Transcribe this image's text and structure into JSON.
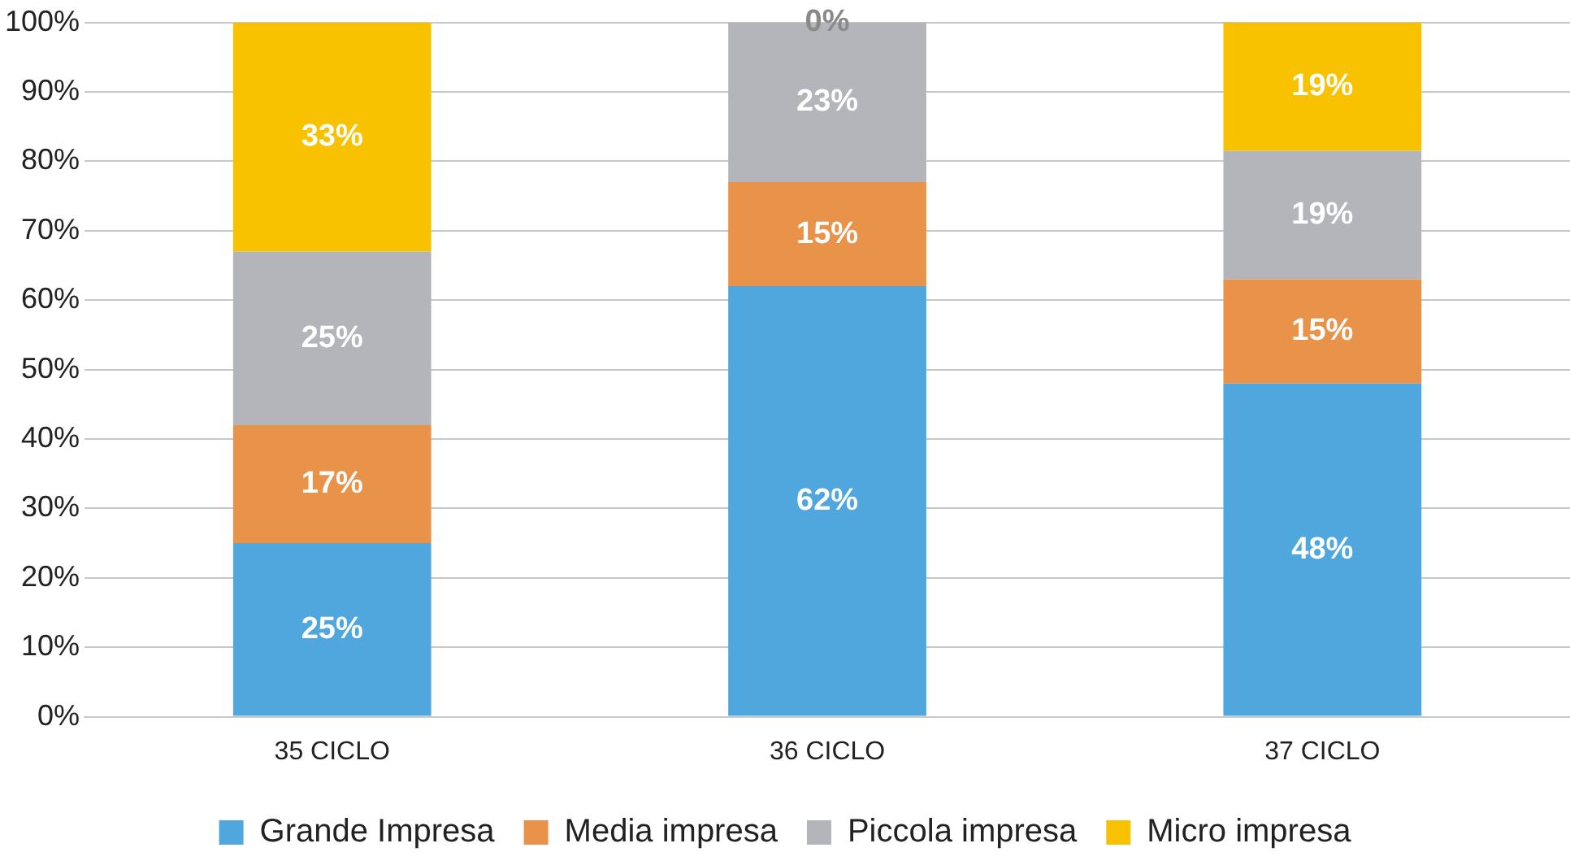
{
  "chart_data": {
    "type": "bar",
    "stacked": true,
    "categories": [
      "35 CICLO",
      "36 CICLO",
      "37 CICLO"
    ],
    "series": [
      {
        "name": "Grande Impresa",
        "color": "#4fa7dd",
        "values": [
          25,
          62,
          48
        ],
        "value_labels": [
          "25%",
          "62%",
          "48%"
        ]
      },
      {
        "name": "Media impresa",
        "color": "#e8924a",
        "values": [
          17,
          15,
          15
        ],
        "value_labels": [
          "17%",
          "15%",
          "15%"
        ]
      },
      {
        "name": "Piccola impresa",
        "color": "#b3b5ba",
        "values": [
          25,
          23,
          18.5
        ],
        "value_labels": [
          "25%",
          "23%",
          "19%"
        ]
      },
      {
        "name": "Micro impresa",
        "color": "#f8c200",
        "values": [
          33,
          0,
          18.5
        ],
        "value_labels": [
          "33%",
          "0%",
          "19%"
        ]
      }
    ],
    "ylim": [
      0,
      100
    ],
    "yticks": [
      {
        "value": 0,
        "label": "0%"
      },
      {
        "value": 10,
        "label": "10%"
      },
      {
        "value": 20,
        "label": "20%"
      },
      {
        "value": 30,
        "label": "30%"
      },
      {
        "value": 40,
        "label": "40%"
      },
      {
        "value": 50,
        "label": "50%"
      },
      {
        "value": 60,
        "label": "60%"
      },
      {
        "value": 70,
        "label": "70%"
      },
      {
        "value": 80,
        "label": "80%"
      },
      {
        "value": 90,
        "label": "90%"
      },
      {
        "value": 100,
        "label": "100%"
      }
    ],
    "grid": "y",
    "legend": "bottom"
  }
}
